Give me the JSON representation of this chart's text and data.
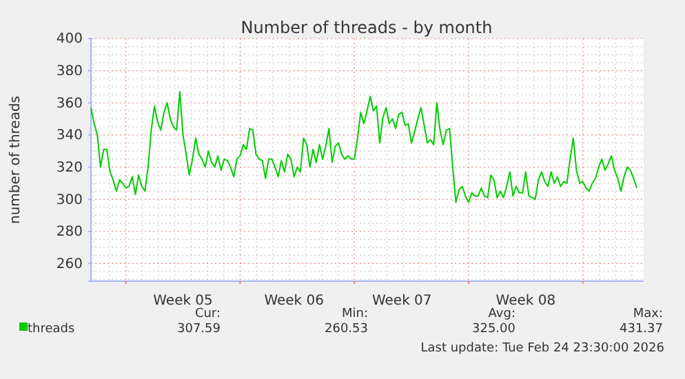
{
  "chart_data": {
    "type": "line",
    "title": "Number of threads - by month",
    "ylabel": "number of threads",
    "categories": [
      null,
      null,
      null,
      null,
      null,
      null,
      null,
      null,
      null,
      null,
      null,
      null,
      null,
      null,
      null,
      null,
      null,
      null,
      null,
      null,
      null,
      null,
      null,
      null,
      null,
      null,
      null,
      null,
      null,
      "Week 05",
      null,
      null,
      null,
      null,
      null,
      null,
      null,
      null,
      null,
      null,
      null,
      null,
      null,
      null,
      null,
      null,
      null,
      null,
      null,
      null,
      null,
      null,
      null,
      null,
      null,
      null,
      null,
      null,
      null,
      null,
      null,
      null,
      null,
      null,
      "Week 06",
      null,
      null,
      null,
      null,
      null,
      null,
      null,
      null,
      null,
      null,
      null,
      null,
      null,
      null,
      null,
      null,
      null,
      null,
      null,
      null,
      null,
      null,
      null,
      null,
      null,
      null,
      null,
      null,
      null,
      null,
      null,
      null,
      null,
      "Week 07",
      null,
      null,
      null,
      null,
      null,
      null,
      null,
      null,
      null,
      null,
      null,
      null,
      null,
      null,
      null,
      null,
      null,
      null,
      null,
      null,
      null,
      null,
      null,
      null,
      null,
      null,
      null,
      null,
      null,
      null,
      null,
      null,
      null,
      null,
      null,
      null,
      null,
      null,
      "Week 08",
      null,
      null,
      null,
      null,
      null,
      null,
      null,
      null,
      null,
      null,
      null,
      null,
      null,
      null,
      null,
      null,
      null,
      null,
      null,
      null,
      null,
      null,
      null,
      null,
      null,
      null,
      null,
      null,
      null,
      null,
      null,
      null,
      null,
      null,
      null
    ],
    "ylim": [
      249,
      400
    ],
    "yticks": [
      260,
      280,
      300,
      320,
      340,
      360,
      380,
      400
    ],
    "grid": true,
    "legend": "bottom left",
    "marker": "none",
    "line_style": "solid",
    "annotations": [
      "Cur:\n307.59",
      "Min:\n260.53",
      "Avg:\n325.00",
      "Max:\n431.37",
      "Last update: Tue Feb 24 23:30:00 2026"
    ],
    "series": [
      {
        "name": "threads",
        "color": "#00cc00",
        "values": [
          357,
          347,
          340,
          320,
          331,
          331,
          317,
          312,
          305,
          312,
          310,
          307,
          308,
          314,
          303,
          315,
          308,
          305,
          320,
          343,
          358,
          348,
          343,
          354,
          360,
          350,
          345,
          343,
          367,
          340,
          328,
          315,
          325,
          338,
          328,
          325,
          320,
          330,
          323,
          320,
          327,
          318,
          325,
          324,
          320,
          314,
          325,
          327,
          334,
          331,
          344,
          343,
          328,
          325,
          324,
          313,
          325,
          325,
          320,
          314,
          324,
          317,
          328,
          325,
          314,
          320,
          317,
          338,
          334,
          320,
          331,
          323,
          334,
          325,
          333,
          344,
          323,
          333,
          335,
          328,
          325,
          327,
          325,
          325,
          338,
          354,
          347,
          355,
          364,
          355,
          358,
          335,
          351,
          357,
          347,
          350,
          344,
          353,
          354,
          346,
          347,
          335,
          342,
          350,
          357,
          346,
          335,
          337,
          334,
          360,
          343,
          334,
          343,
          344,
          320,
          298,
          306,
          308,
          302,
          298,
          304,
          302,
          302,
          307,
          302,
          301,
          315,
          312,
          301,
          305,
          301,
          308,
          317,
          302,
          308,
          304,
          304,
          317,
          302,
          301,
          300,
          312,
          317,
          311,
          308,
          317,
          310,
          314,
          308,
          311,
          310,
          325,
          338,
          318,
          310,
          311,
          307,
          305,
          310,
          313,
          320,
          325,
          318,
          322,
          327,
          318,
          313,
          305,
          314,
          320,
          318,
          313,
          307
        ]
      }
    ]
  }
}
